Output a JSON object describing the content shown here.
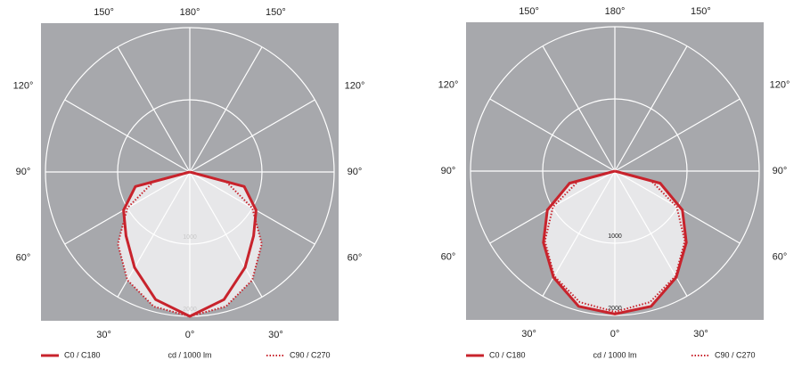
{
  "chart_data": [
    {
      "type": "polar",
      "theta": [
        -90,
        -75,
        -60,
        -45,
        -30,
        -15,
        0,
        15,
        30,
        45,
        60,
        75,
        90
      ],
      "thetalim": [
        -180,
        180
      ],
      "theta_ticks": [
        {
          "value": 0,
          "label": "0°"
        },
        {
          "value": 30,
          "label": "30°"
        },
        {
          "value": 60,
          "label": "60°"
        },
        {
          "value": 90,
          "label": "90°"
        },
        {
          "value": 120,
          "label": "120°"
        },
        {
          "value": 150,
          "label": "150°"
        },
        {
          "value": 180,
          "label": "180°"
        }
      ],
      "rlim": [
        0,
        2000
      ],
      "rticks": [
        1000,
        2000
      ],
      "rtick_color": "#c8c8c8",
      "r_label": "cd / 1000 lm",
      "series": [
        {
          "name": "C0 / C180",
          "color": "#c8232c",
          "style": "solid",
          "values": [
            0,
            780,
            1060,
            1250,
            1530,
            1830,
            2000,
            1830,
            1530,
            1250,
            1060,
            780,
            0
          ]
        },
        {
          "name": "C90 / C270",
          "color": "#c8232c",
          "style": "dotted",
          "values": [
            0,
            520,
            1000,
            1410,
            1730,
            1930,
            2000,
            1930,
            1730,
            1410,
            1000,
            520,
            0
          ]
        }
      ]
    },
    {
      "type": "polar",
      "theta": [
        -90,
        -75,
        -60,
        -45,
        -30,
        -15,
        0,
        15,
        30,
        45,
        60,
        75,
        90
      ],
      "thetalim": [
        -180,
        180
      ],
      "theta_ticks": [
        {
          "value": 0,
          "label": "0°"
        },
        {
          "value": 30,
          "label": "30°"
        },
        {
          "value": 60,
          "label": "60°"
        },
        {
          "value": 90,
          "label": "90°"
        },
        {
          "value": 120,
          "label": "120°"
        },
        {
          "value": 150,
          "label": "150°"
        },
        {
          "value": 180,
          "label": "180°"
        }
      ],
      "rlim": [
        0,
        2000
      ],
      "rticks": [
        1000,
        2000
      ],
      "rtick_color": "#222222",
      "r_label": "cd / 1000 lm",
      "series": [
        {
          "name": "C0 / C180",
          "color": "#c8232c",
          "style": "solid",
          "values": [
            0,
            650,
            1080,
            1400,
            1700,
            1940,
            1980,
            1940,
            1700,
            1400,
            1080,
            650,
            0
          ]
        },
        {
          "name": "C90 / C270",
          "color": "#c8232c",
          "style": "dotted",
          "values": [
            0,
            520,
            990,
            1370,
            1680,
            1880,
            1950,
            1880,
            1680,
            1370,
            990,
            520,
            0
          ]
        }
      ]
    }
  ]
}
